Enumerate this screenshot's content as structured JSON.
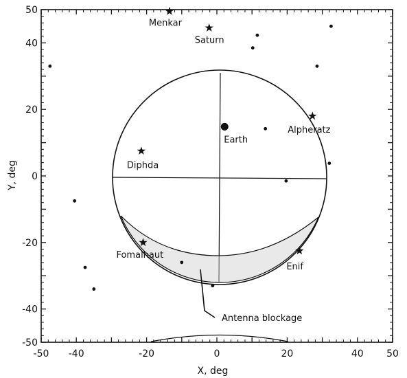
{
  "chart_data": {
    "type": "scatter",
    "title": "",
    "xlabel": "X, deg",
    "ylabel": "Y, deg",
    "xlim": [
      -50,
      50
    ],
    "ylim": [
      -50,
      50
    ],
    "xticks": [
      "-50",
      "-40",
      "-20",
      "0",
      "20",
      "40",
      "50"
    ],
    "yticks": [
      "50",
      "40",
      "20",
      "0",
      "-20",
      "-40",
      "-50"
    ],
    "grid": false,
    "named_objects": [
      {
        "name": "Menkar",
        "x": -13.5,
        "y": 49.5,
        "marker": "star"
      },
      {
        "name": "Saturn",
        "x": -2.2,
        "y": 44.5,
        "marker": "star"
      },
      {
        "name": "Alpheratz",
        "x": 27.2,
        "y": 18.0,
        "marker": "star"
      },
      {
        "name": "Earth",
        "x": 2.2,
        "y": 14.8,
        "marker": "disc"
      },
      {
        "name": "Diphda",
        "x": -21.5,
        "y": 7.5,
        "marker": "star"
      },
      {
        "name": "Fomalhaut",
        "x": -21.0,
        "y": -20.0,
        "marker": "star"
      },
      {
        "name": "Enif",
        "x": 23.5,
        "y": -22.5,
        "marker": "star"
      }
    ],
    "unnamed_points": [
      {
        "x": -47.5,
        "y": 33.0
      },
      {
        "x": 11.5,
        "y": 42.3
      },
      {
        "x": 10.2,
        "y": 38.5
      },
      {
        "x": 32.5,
        "y": 45.0
      },
      {
        "x": 28.5,
        "y": 33.0
      },
      {
        "x": 13.8,
        "y": 14.2
      },
      {
        "x": 32.0,
        "y": 3.8
      },
      {
        "x": 19.7,
        "y": -1.5
      },
      {
        "x": -40.5,
        "y": -7.5
      },
      {
        "x": -37.5,
        "y": -27.5
      },
      {
        "x": -35.0,
        "y": -34.0
      },
      {
        "x": -10.0,
        "y": -26.0
      },
      {
        "x": -1.2,
        "y": -33.0
      }
    ],
    "annotations": [
      {
        "text": "Antenna blockage",
        "x": 1.5,
        "y": -42.5
      }
    ]
  }
}
